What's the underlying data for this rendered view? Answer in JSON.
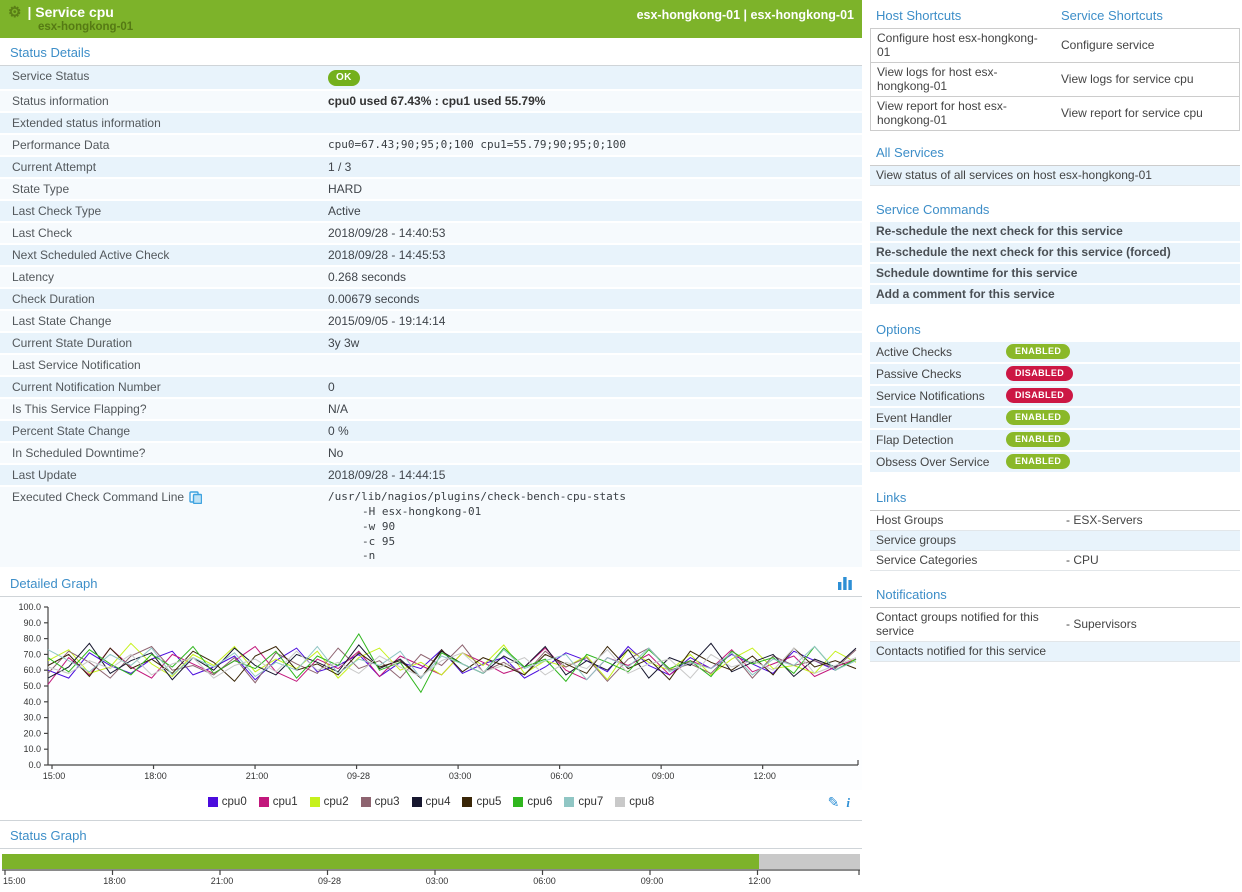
{
  "colors": {
    "header_green": "#7db32a",
    "link_blue": "#3d8ec8",
    "stripe_blue": "#e8f3fb",
    "badge_enabled": "#8ab829",
    "badge_disabled": "#cc1744",
    "ok_badge": "#74b01c",
    "status_bar_green": "#7db32a",
    "status_bar_gray": "#c9c9c9"
  },
  "header": {
    "gear_icon": "gear-icon",
    "title": "| Service cpu",
    "subtitle": "esx-hongkong-01",
    "right_text": "esx-hongkong-01 | esx-hongkong-01"
  },
  "status_details": {
    "heading": "Status Details",
    "rows": [
      {
        "label": "Service Status",
        "value": "OK",
        "type": "badge"
      },
      {
        "label": "Status information",
        "value": "cpu0 used 67.43% : cpu1 used 55.79%",
        "type": "bold"
      },
      {
        "label": "Extended status information",
        "value": "",
        "type": "text"
      },
      {
        "label": "Performance Data",
        "value": "cpu0=67.43;90;95;0;100 cpu1=55.79;90;95;0;100",
        "type": "mono"
      },
      {
        "label": "Current Attempt",
        "value": "1 / 3",
        "type": "text"
      },
      {
        "label": "State Type",
        "value": "HARD",
        "type": "text"
      },
      {
        "label": "Last Check Type",
        "value": "Active",
        "type": "text"
      },
      {
        "label": "Last Check",
        "value": "2018/09/28 - 14:40:53",
        "type": "text"
      },
      {
        "label": "Next Scheduled Active Check",
        "value": "2018/09/28 - 14:45:53",
        "type": "text"
      },
      {
        "label": "Latency",
        "value": "0.268 seconds",
        "type": "text"
      },
      {
        "label": "Check Duration",
        "value": "0.00679 seconds",
        "type": "text"
      },
      {
        "label": "Last State Change",
        "value": "2015/09/05 - 19:14:14",
        "type": "text"
      },
      {
        "label": "Current State Duration",
        "value": "3y 3w",
        "type": "text"
      },
      {
        "label": "Last Service Notification",
        "value": "",
        "type": "text"
      },
      {
        "label": "Current Notification Number",
        "value": "0",
        "type": "text"
      },
      {
        "label": "Is This Service Flapping?",
        "value": "N/A",
        "type": "text"
      },
      {
        "label": "Percent State Change",
        "value": "0 %",
        "type": "text"
      },
      {
        "label": "In Scheduled Downtime?",
        "value": "No",
        "type": "text"
      },
      {
        "label": "Last Update",
        "value": "2018/09/28 - 14:44:15",
        "type": "text"
      },
      {
        "label": "Executed Check Command Line",
        "label_icon": "clipboard-icon",
        "value_lines": [
          "/usr/lib/nagios/plugins/check-bench-cpu-stats",
          "-H esx-hongkong-01",
          "-w 90",
          "-c 95",
          "-n"
        ],
        "type": "cmd"
      }
    ]
  },
  "detailed_graph": {
    "heading": "Detailed Graph",
    "chart_icon": "bar-chart-icon",
    "edit_icon": "pencil-icon",
    "edit_glyph": "✎",
    "info_icon": "info-icon",
    "info_glyph": "i"
  },
  "status_graph_section": {
    "heading": "Status Graph"
  },
  "chart_data": [
    {
      "type": "line",
      "title": "Detailed Graph",
      "xlabel": "",
      "ylabel": "",
      "ylim": [
        0,
        100
      ],
      "y_ticks": [
        0,
        10,
        20,
        30,
        40,
        50,
        60,
        70,
        80,
        90,
        100
      ],
      "y_tick_labels": [
        "0.0",
        "10.0",
        "20.0",
        "30.0",
        "40.0",
        "50.0",
        "60.0",
        "70.0",
        "80.0",
        "90.0",
        "100.0"
      ],
      "x_ticks": [
        "15:00",
        "18:00",
        "21:00",
        "09-28",
        "03:00",
        "06:00",
        "09:00",
        "12:00"
      ],
      "grid": false,
      "legend_position": "bottom",
      "series": [
        {
          "name": "cpu0",
          "color": "#4b0cdd",
          "values": [
            60,
            55,
            71,
            63,
            58,
            67,
            72,
            57,
            62,
            69,
            54,
            66,
            74,
            59,
            63,
            70,
            56,
            65,
            61,
            73,
            58,
            64,
            68,
            55,
            62,
            71,
            66,
            59,
            75,
            63,
            57,
            68,
            61,
            70,
            64,
            58,
            72,
            66,
            60,
            67
          ]
        },
        {
          "name": "cpu1",
          "color": "#c2187c",
          "values": [
            51,
            68,
            57,
            74,
            62,
            55,
            70,
            64,
            58,
            66,
            75,
            59,
            53,
            67,
            61,
            72,
            56,
            69,
            63,
            57,
            71,
            65,
            58,
            62,
            74,
            60,
            54,
            68,
            63,
            70,
            57,
            66,
            61,
            73,
            59,
            64,
            69,
            56,
            62,
            67
          ]
        },
        {
          "name": "cpu2",
          "color": "#c6f11c",
          "values": [
            66,
            73,
            58,
            62,
            77,
            64,
            56,
            70,
            63,
            75,
            59,
            67,
            61,
            72,
            55,
            68,
            74,
            60,
            65,
            57,
            71,
            63,
            76,
            58,
            66,
            62,
            69,
            54,
            73,
            65,
            60,
            70,
            57,
            67,
            74,
            61,
            63,
            58,
            72,
            65
          ]
        },
        {
          "name": "cpu3",
          "color": "#8e6470",
          "values": [
            58,
            72,
            65,
            55,
            69,
            75,
            60,
            63,
            57,
            68,
            52,
            71,
            64,
            58,
            74,
            61,
            66,
            55,
            70,
            63,
            76,
            59,
            65,
            57,
            72,
            62,
            68,
            53,
            67,
            74,
            60,
            64,
            58,
            71,
            55,
            69,
            63,
            66,
            61,
            73
          ]
        },
        {
          "name": "cpu4",
          "color": "#17172f",
          "values": [
            55,
            62,
            77,
            58,
            66,
            71,
            54,
            68,
            60,
            74,
            63,
            57,
            70,
            65,
            59,
            76,
            61,
            67,
            55,
            72,
            64,
            58,
            69,
            62,
            75,
            57,
            66,
            60,
            73,
            55,
            68,
            63,
            77,
            59,
            65,
            70,
            56,
            67,
            62,
            74
          ]
        },
        {
          "name": "cpu5",
          "color": "#3a2607",
          "values": [
            63,
            70,
            56,
            74,
            61,
            67,
            58,
            72,
            65,
            53,
            69,
            75,
            60,
            64,
            57,
            71,
            62,
            66,
            55,
            73,
            59,
            68,
            63,
            57,
            70,
            64,
            58,
            75,
            61,
            67,
            54,
            72,
            65,
            60,
            69,
            57,
            74,
            62,
            66,
            61
          ]
        },
        {
          "name": "cpu6",
          "color": "#30b61e",
          "values": [
            68,
            59,
            73,
            64,
            57,
            70,
            62,
            75,
            58,
            66,
            61,
            72,
            55,
            69,
            63,
            83,
            60,
            65,
            46,
            71,
            64,
            58,
            74,
            62,
            67,
            53,
            70,
            65,
            59,
            73,
            61,
            66,
            56,
            72,
            64,
            68,
            58,
            75,
            60,
            67
          ]
        },
        {
          "name": "cpu7",
          "color": "#90c6c4",
          "values": [
            73,
            66,
            59,
            70,
            63,
            74,
            57,
            68,
            62,
            71,
            56,
            65,
            60,
            75,
            58,
            67,
            63,
            72,
            55,
            69,
            64,
            58,
            73,
            61,
            66,
            70,
            54,
            68,
            62,
            74,
            59,
            65,
            61,
            71,
            57,
            67,
            63,
            75,
            60,
            66
          ]
        },
        {
          "name": "cpu8",
          "color": "#c9c9c9",
          "values": [
            62,
            58,
            66,
            61,
            70,
            57,
            64,
            68,
            55,
            63,
            67,
            59,
            72,
            60,
            65,
            58,
            69,
            62,
            56,
            66,
            71,
            59,
            63,
            68,
            57,
            65,
            61,
            73,
            58,
            64,
            67,
            55,
            70,
            62,
            66,
            60,
            74,
            58,
            63,
            68
          ]
        }
      ]
    },
    {
      "type": "area",
      "title": "Status Graph",
      "x_ticks": [
        "15:00",
        "18:00",
        "21:00",
        "09-28",
        "03:00",
        "06:00",
        "09:00",
        "12:00"
      ],
      "segments": [
        {
          "state": "OK",
          "color": "#7db32a",
          "fraction": 0.882
        },
        {
          "state": "no-data",
          "color": "#c9c9c9",
          "fraction": 0.118
        }
      ]
    }
  ],
  "right_panel": {
    "shortcuts": {
      "host_heading": "Host Shortcuts",
      "service_heading": "Service Shortcuts",
      "rows": [
        [
          "Configure host esx-hongkong-01",
          "Configure service"
        ],
        [
          "View logs for host esx-hongkong-01",
          "View logs for service cpu"
        ],
        [
          "View report for host esx-hongkong-01",
          "View report for service cpu"
        ]
      ]
    },
    "all_services": {
      "heading": "All Services",
      "link": "View status of all services on host esx-hongkong-01"
    },
    "service_commands": {
      "heading": "Service Commands",
      "items": [
        "Re-schedule the next check for this service",
        "Re-schedule the next check for this service (forced)",
        "Schedule downtime for this service",
        "Add a comment for this service"
      ]
    },
    "options": {
      "heading": "Options",
      "rows": [
        {
          "label": "Active Checks",
          "state": "ENABLED"
        },
        {
          "label": "Passive Checks",
          "state": "DISABLED"
        },
        {
          "label": "Service Notifications",
          "state": "DISABLED"
        },
        {
          "label": "Event Handler",
          "state": "ENABLED"
        },
        {
          "label": "Flap Detection",
          "state": "ENABLED"
        },
        {
          "label": "Obsess Over Service",
          "state": "ENABLED"
        }
      ]
    },
    "links": {
      "heading": "Links",
      "rows": [
        {
          "label": "Host Groups",
          "value": "- ESX-Servers"
        },
        {
          "label": "Service groups",
          "value": ""
        },
        {
          "label": "Service Categories",
          "value": "- CPU"
        }
      ]
    },
    "notifications": {
      "heading": "Notifications",
      "rows": [
        {
          "label": "Contact groups notified for this service",
          "value": "- Supervisors"
        },
        {
          "label": "Contacts notified for this service",
          "value": ""
        }
      ]
    }
  }
}
